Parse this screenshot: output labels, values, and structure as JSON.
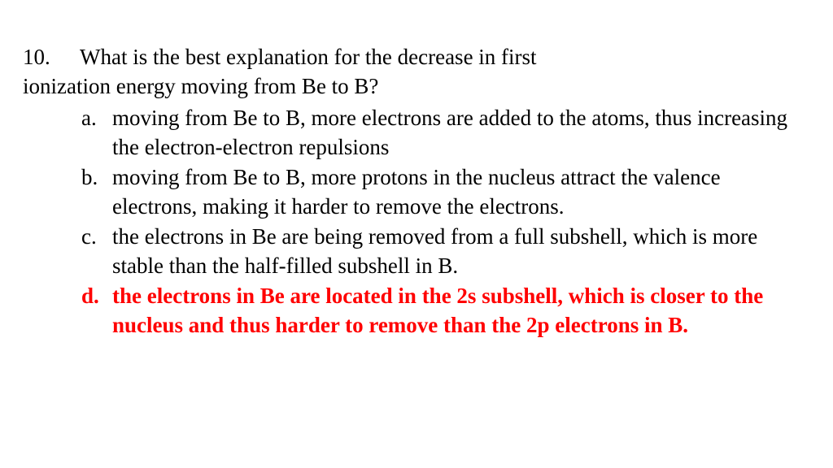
{
  "question": {
    "number": "10.",
    "line1": "What is the best explanation for the decrease in first",
    "line2": "ionization energy moving from Be to B?"
  },
  "options": {
    "a": {
      "letter": "a.",
      "text": "moving from Be to B, more electrons are added to the atoms, thus increasing the electron-electron repulsions",
      "is_answer": false
    },
    "b": {
      "letter": "b.",
      "text": "moving from Be to B, more protons in the nucleus attract the valence electrons, making it harder to remove the electrons.",
      "is_answer": false
    },
    "c": {
      "letter": "c.",
      "text": "the electrons in Be are being removed from a full subshell, which is more stable than the half-filled subshell in B.",
      "is_answer": false
    },
    "d": {
      "letter": "d.",
      "text": "the electrons in Be are located in the 2s subshell, which is closer to the nucleus and thus harder to remove than the 2p electrons in B.",
      "is_answer": true
    }
  },
  "style": {
    "text_color": "#000000",
    "answer_color": "#ff0000",
    "background": "#ffffff",
    "font_family": "Times New Roman",
    "font_size_pt": 20
  }
}
